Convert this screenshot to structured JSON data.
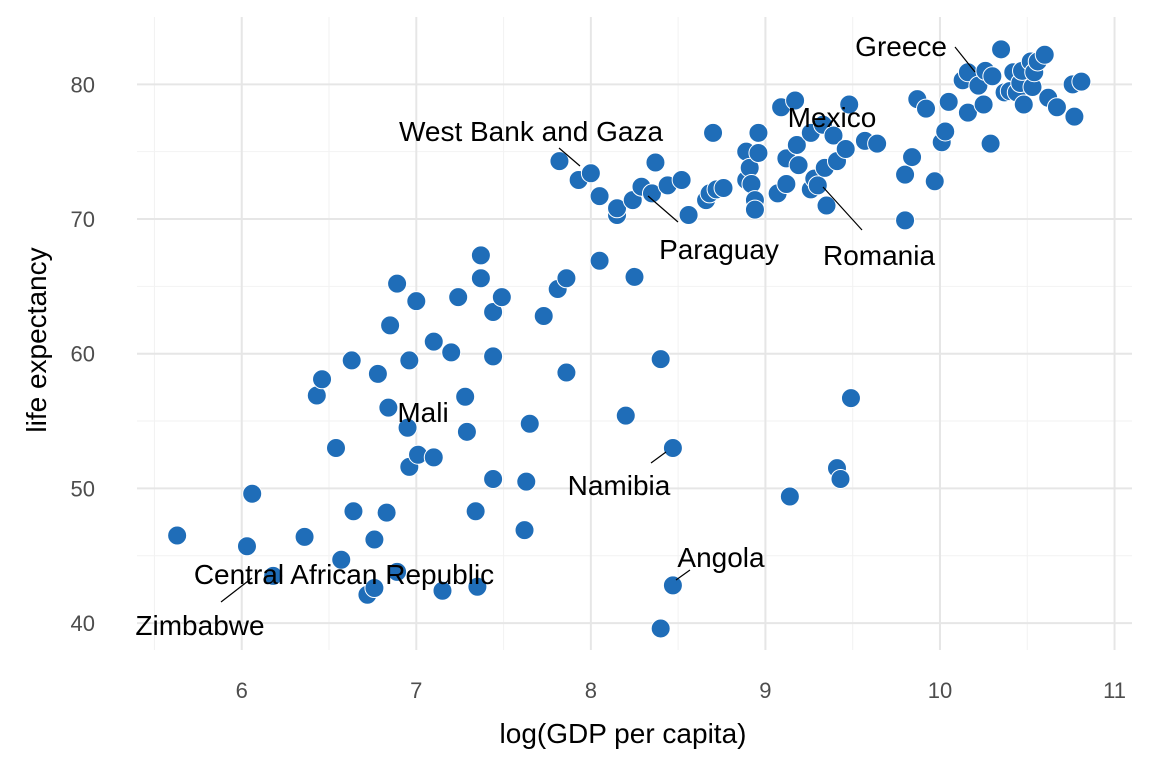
{
  "chart_data": {
    "type": "scatter",
    "title": "",
    "xlabel": "log(GDP per capita)",
    "ylabel": "life expectancy",
    "xlim": [
      5.4,
      11.1
    ],
    "ylim": [
      38,
      85
    ],
    "xticks": [
      6,
      7,
      8,
      9,
      10,
      11
    ],
    "yticks": [
      40,
      50,
      60,
      70,
      80
    ],
    "grid": true,
    "legend": "none",
    "point_color": "#1F6DB8",
    "points": [
      [
        5.63,
        46.5
      ],
      [
        6.03,
        45.7
      ],
      [
        6.06,
        49.6
      ],
      [
        6.18,
        43.5
      ],
      [
        6.36,
        46.4
      ],
      [
        6.43,
        56.9
      ],
      [
        6.46,
        58.1
      ],
      [
        6.54,
        53.0
      ],
      [
        6.57,
        44.7
      ],
      [
        6.63,
        59.5
      ],
      [
        6.64,
        48.3
      ],
      [
        6.72,
        42.1
      ],
      [
        6.76,
        46.2
      ],
      [
        6.76,
        42.6
      ],
      [
        6.78,
        58.5
      ],
      [
        6.83,
        48.2
      ],
      [
        6.84,
        56.0
      ],
      [
        6.85,
        62.1
      ],
      [
        6.89,
        43.8
      ],
      [
        6.89,
        65.2
      ],
      [
        6.95,
        54.5
      ],
      [
        6.96,
        51.6
      ],
      [
        6.96,
        59.5
      ],
      [
        7.0,
        63.9
      ],
      [
        7.01,
        52.5
      ],
      [
        7.1,
        52.3
      ],
      [
        7.1,
        60.9
      ],
      [
        7.15,
        42.4
      ],
      [
        7.2,
        60.1
      ],
      [
        7.24,
        64.2
      ],
      [
        7.28,
        56.8
      ],
      [
        7.29,
        54.2
      ],
      [
        7.34,
        48.3
      ],
      [
        7.35,
        42.7
      ],
      [
        7.37,
        67.3
      ],
      [
        7.37,
        65.6
      ],
      [
        7.44,
        63.1
      ],
      [
        7.44,
        59.8
      ],
      [
        7.44,
        50.7
      ],
      [
        7.49,
        64.2
      ],
      [
        7.62,
        46.9
      ],
      [
        7.63,
        50.5
      ],
      [
        7.65,
        54.8
      ],
      [
        7.73,
        62.8
      ],
      [
        7.81,
        64.8
      ],
      [
        7.82,
        74.3
      ],
      [
        7.86,
        65.6
      ],
      [
        7.86,
        58.6
      ],
      [
        7.93,
        72.9
      ],
      [
        8.0,
        73.4
      ],
      [
        8.05,
        66.9
      ],
      [
        8.05,
        71.7
      ],
      [
        8.15,
        70.3
      ],
      [
        8.15,
        70.8
      ],
      [
        8.2,
        55.4
      ],
      [
        8.24,
        71.4
      ],
      [
        8.25,
        65.7
      ],
      [
        8.29,
        72.4
      ],
      [
        8.35,
        71.9
      ],
      [
        8.37,
        74.2
      ],
      [
        8.4,
        59.6
      ],
      [
        8.4,
        39.6
      ],
      [
        8.44,
        72.5
      ],
      [
        8.47,
        53.0
      ],
      [
        8.47,
        42.8
      ],
      [
        8.52,
        72.9
      ],
      [
        8.56,
        70.3
      ],
      [
        8.66,
        71.4
      ],
      [
        8.68,
        71.9
      ],
      [
        8.7,
        76.4
      ],
      [
        8.72,
        72.2
      ],
      [
        8.76,
        72.3
      ],
      [
        8.89,
        75.0
      ],
      [
        8.89,
        72.9
      ],
      [
        8.91,
        73.8
      ],
      [
        8.92,
        72.6
      ],
      [
        8.94,
        71.4
      ],
      [
        8.94,
        70.7
      ],
      [
        8.96,
        74.9
      ],
      [
        8.96,
        76.4
      ],
      [
        9.07,
        71.9
      ],
      [
        9.09,
        78.3
      ],
      [
        9.12,
        72.6
      ],
      [
        9.12,
        74.5
      ],
      [
        9.14,
        49.4
      ],
      [
        9.17,
        78.8
      ],
      [
        9.18,
        75.5
      ],
      [
        9.19,
        74.0
      ],
      [
        9.26,
        76.4
      ],
      [
        9.26,
        72.2
      ],
      [
        9.28,
        73.0
      ],
      [
        9.3,
        72.5
      ],
      [
        9.33,
        77.0
      ],
      [
        9.34,
        73.8
      ],
      [
        9.35,
        71.0
      ],
      [
        9.39,
        76.2
      ],
      [
        9.41,
        74.3
      ],
      [
        9.41,
        51.5
      ],
      [
        9.43,
        50.7
      ],
      [
        9.46,
        75.2
      ],
      [
        9.48,
        78.5
      ],
      [
        9.49,
        56.7
      ],
      [
        9.57,
        75.8
      ],
      [
        9.64,
        75.6
      ],
      [
        9.8,
        73.3
      ],
      [
        9.8,
        69.9
      ],
      [
        9.84,
        74.6
      ],
      [
        9.87,
        78.9
      ],
      [
        9.92,
        78.2
      ],
      [
        9.97,
        72.8
      ],
      [
        10.01,
        75.7
      ],
      [
        10.03,
        76.5
      ],
      [
        10.05,
        78.7
      ],
      [
        10.13,
        80.3
      ],
      [
        10.16,
        80.9
      ],
      [
        10.16,
        77.9
      ],
      [
        10.22,
        79.9
      ],
      [
        10.25,
        78.5
      ],
      [
        10.26,
        81.0
      ],
      [
        10.29,
        75.6
      ],
      [
        10.3,
        80.6
      ],
      [
        10.35,
        82.6
      ],
      [
        10.37,
        79.4
      ],
      [
        10.4,
        79.5
      ],
      [
        10.42,
        80.9
      ],
      [
        10.44,
        79.4
      ],
      [
        10.46,
        80.1
      ],
      [
        10.47,
        81.0
      ],
      [
        10.48,
        78.5
      ],
      [
        10.52,
        81.7
      ],
      [
        10.53,
        79.8
      ],
      [
        10.54,
        80.9
      ],
      [
        10.56,
        81.7
      ],
      [
        10.6,
        82.2
      ],
      [
        10.62,
        79.0
      ],
      [
        10.67,
        78.3
      ],
      [
        10.76,
        80.0
      ],
      [
        10.77,
        77.6
      ],
      [
        10.81,
        80.2
      ]
    ],
    "annotations": [
      {
        "label": "Greece",
        "x": 10.2,
        "y": 79.4
      },
      {
        "label": "Mexico",
        "x": 9.21,
        "y": 76.2
      },
      {
        "label": "West Bank and Gaza",
        "x": 8.01,
        "y": 73.4
      },
      {
        "label": "Paraguay",
        "x": 8.35,
        "y": 71.8
      },
      {
        "label": "Romania",
        "x": 9.32,
        "y": 72.8
      },
      {
        "label": "Mali",
        "x": 6.96,
        "y": 54.5
      },
      {
        "label": "Namibia",
        "x": 8.47,
        "y": 53.0
      },
      {
        "label": "Angola",
        "x": 8.47,
        "y": 42.8
      },
      {
        "label": "Central African Republic",
        "x": 6.18,
        "y": 43.5
      },
      {
        "label": "Zimbabwe",
        "x": 6.18,
        "y": 43.5
      }
    ]
  }
}
